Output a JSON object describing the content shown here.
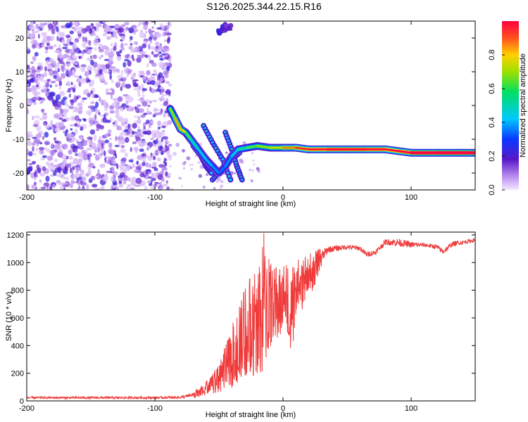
{
  "chart_data": [
    {
      "type": "heatmap",
      "title": "S126.2025.344.22.15.R16",
      "xlabel": "Height of straight line (km)",
      "ylabel": "Frequency (Hz)",
      "xlim": [
        -200,
        150
      ],
      "ylim": [
        -25,
        25
      ],
      "xticks": [
        {
          "value": -200,
          "label": "-200"
        },
        {
          "value": -100,
          "label": "-100"
        },
        {
          "value": 0,
          "label": "0"
        },
        {
          "value": 100,
          "label": "100"
        }
      ],
      "yticks": [
        {
          "value": 20,
          "label": "20"
        },
        {
          "value": 10,
          "label": "10"
        },
        {
          "value": 0,
          "label": "0"
        },
        {
          "value": -10,
          "label": "-10"
        },
        {
          "value": -20,
          "label": "-20"
        }
      ],
      "colorbar": {
        "label": "Normalized spectral amplitude",
        "range": [
          0.0,
          1.0
        ],
        "ticks": [
          {
            "value": 0.0,
            "label": "0.0"
          },
          {
            "value": 0.2,
            "label": "0.2"
          },
          {
            "value": 0.4,
            "label": "0.4"
          },
          {
            "value": 0.6,
            "label": "0.6"
          },
          {
            "value": 0.8,
            "label": "0.8"
          }
        ]
      },
      "noise_region_x": [
        -200,
        -88
      ],
      "trace": [
        {
          "x": -88,
          "y": -1,
          "amp": 0.45
        },
        {
          "x": -84,
          "y": -4,
          "amp": 0.6
        },
        {
          "x": -80,
          "y": -7,
          "amp": 0.65
        },
        {
          "x": -76,
          "y": -8,
          "amp": 0.55
        },
        {
          "x": -72,
          "y": -10,
          "amp": 0.4
        },
        {
          "x": -66,
          "y": -13,
          "amp": 0.35
        },
        {
          "x": -60,
          "y": -16,
          "amp": 0.3
        },
        {
          "x": -55,
          "y": -18,
          "amp": 0.3
        },
        {
          "x": -50,
          "y": -20,
          "amp": 0.25
        },
        {
          "x": -45,
          "y": -18,
          "amp": 0.25
        },
        {
          "x": -40,
          "y": -15,
          "amp": 0.3
        },
        {
          "x": -35,
          "y": -13,
          "amp": 0.35
        },
        {
          "x": -28,
          "y": -12.5,
          "amp": 0.45
        },
        {
          "x": -20,
          "y": -12,
          "amp": 0.5
        },
        {
          "x": -10,
          "y": -12.5,
          "amp": 0.55
        },
        {
          "x": 0,
          "y": -12.5,
          "amp": 0.6
        },
        {
          "x": 10,
          "y": -12.5,
          "amp": 0.7
        },
        {
          "x": 20,
          "y": -13,
          "amp": 0.75
        },
        {
          "x": 35,
          "y": -13,
          "amp": 0.85
        },
        {
          "x": 50,
          "y": -13,
          "amp": 0.85
        },
        {
          "x": 65,
          "y": -13,
          "amp": 0.85
        },
        {
          "x": 80,
          "y": -13,
          "amp": 0.8
        },
        {
          "x": 90,
          "y": -13.5,
          "amp": 0.75
        },
        {
          "x": 100,
          "y": -14,
          "amp": 0.9
        },
        {
          "x": 120,
          "y": -14,
          "amp": 0.95
        },
        {
          "x": 140,
          "y": -14,
          "amp": 0.95
        },
        {
          "x": 150,
          "y": -14,
          "amp": 0.95
        }
      ],
      "secondary_traces": [
        [
          {
            "x": -70,
            "y": -12
          },
          {
            "x": -64,
            "y": -15
          },
          {
            "x": -60,
            "y": -18
          },
          {
            "x": -56,
            "y": -20
          }
        ],
        [
          {
            "x": -62,
            "y": -6
          },
          {
            "x": -55,
            "y": -11
          },
          {
            "x": -47,
            "y": -16
          },
          {
            "x": -41,
            "y": -22
          }
        ],
        [
          {
            "x": -55,
            "y": -22
          },
          {
            "x": -48,
            "y": -19
          },
          {
            "x": -40,
            "y": -16
          },
          {
            "x": -34,
            "y": -14
          }
        ],
        [
          {
            "x": -45,
            "y": -8
          },
          {
            "x": -40,
            "y": -13
          },
          {
            "x": -36,
            "y": -18
          },
          {
            "x": -32,
            "y": -22
          }
        ]
      ],
      "blobs": [
        {
          "x": -48,
          "y": 22.5,
          "amp": 0.2
        },
        {
          "x": -44,
          "y": 23,
          "amp": 0.15
        }
      ]
    },
    {
      "type": "line",
      "xlabel": "Height of straight line (km)",
      "ylabel": "SNR (10 * v/v)",
      "xlim": [
        -200,
        150
      ],
      "ylim": [
        0,
        1220
      ],
      "color": "#ef3b3b",
      "xticks": [
        {
          "value": -200,
          "label": "-200"
        },
        {
          "value": -100,
          "label": "-100"
        },
        {
          "value": 0,
          "label": "0"
        },
        {
          "value": 100,
          "label": "100"
        }
      ],
      "yticks": [
        {
          "value": 0,
          "label": "0"
        },
        {
          "value": 200,
          "label": "200"
        },
        {
          "value": 400,
          "label": "400"
        },
        {
          "value": 600,
          "label": "600"
        },
        {
          "value": 800,
          "label": "800"
        },
        {
          "value": 1000,
          "label": "1000"
        },
        {
          "value": 1200,
          "label": "1200"
        }
      ],
      "envelope": [
        {
          "x": -200,
          "lo": 8,
          "hi": 35
        },
        {
          "x": -150,
          "lo": 8,
          "hi": 35
        },
        {
          "x": -100,
          "lo": 8,
          "hi": 35
        },
        {
          "x": -80,
          "lo": 8,
          "hi": 40
        },
        {
          "x": -72,
          "lo": 15,
          "hi": 60
        },
        {
          "x": -65,
          "lo": 25,
          "hi": 100
        },
        {
          "x": -58,
          "lo": 40,
          "hi": 170
        },
        {
          "x": -50,
          "lo": 60,
          "hi": 280
        },
        {
          "x": -44,
          "lo": 80,
          "hi": 420
        },
        {
          "x": -38,
          "lo": 100,
          "hi": 600
        },
        {
          "x": -32,
          "lo": 140,
          "hi": 760
        },
        {
          "x": -26,
          "lo": 180,
          "hi": 900
        },
        {
          "x": -20,
          "lo": 150,
          "hi": 1050
        },
        {
          "x": -15,
          "lo": 220,
          "hi": 1220
        },
        {
          "x": -10,
          "lo": 350,
          "hi": 1000
        },
        {
          "x": -4,
          "lo": 430,
          "hi": 960
        },
        {
          "x": 0,
          "lo": 500,
          "hi": 1000
        },
        {
          "x": 6,
          "lo": 320,
          "hi": 1020
        },
        {
          "x": 12,
          "lo": 620,
          "hi": 1040
        },
        {
          "x": 18,
          "lo": 700,
          "hi": 1060
        },
        {
          "x": 25,
          "lo": 820,
          "hi": 1080
        },
        {
          "x": 30,
          "lo": 950,
          "hi": 1110
        },
        {
          "x": 35,
          "lo": 1050,
          "hi": 1130
        },
        {
          "x": 50,
          "lo": 1080,
          "hi": 1140
        },
        {
          "x": 60,
          "lo": 1070,
          "hi": 1130
        },
        {
          "x": 65,
          "lo": 1020,
          "hi": 1090
        },
        {
          "x": 72,
          "lo": 1040,
          "hi": 1100
        },
        {
          "x": 80,
          "lo": 1110,
          "hi": 1180
        },
        {
          "x": 90,
          "lo": 1090,
          "hi": 1190
        },
        {
          "x": 100,
          "lo": 1090,
          "hi": 1160
        },
        {
          "x": 110,
          "lo": 1100,
          "hi": 1150
        },
        {
          "x": 120,
          "lo": 1080,
          "hi": 1140
        },
        {
          "x": 125,
          "lo": 1040,
          "hi": 1110
        },
        {
          "x": 132,
          "lo": 1100,
          "hi": 1160
        },
        {
          "x": 150,
          "lo": 1140,
          "hi": 1180
        }
      ]
    }
  ]
}
